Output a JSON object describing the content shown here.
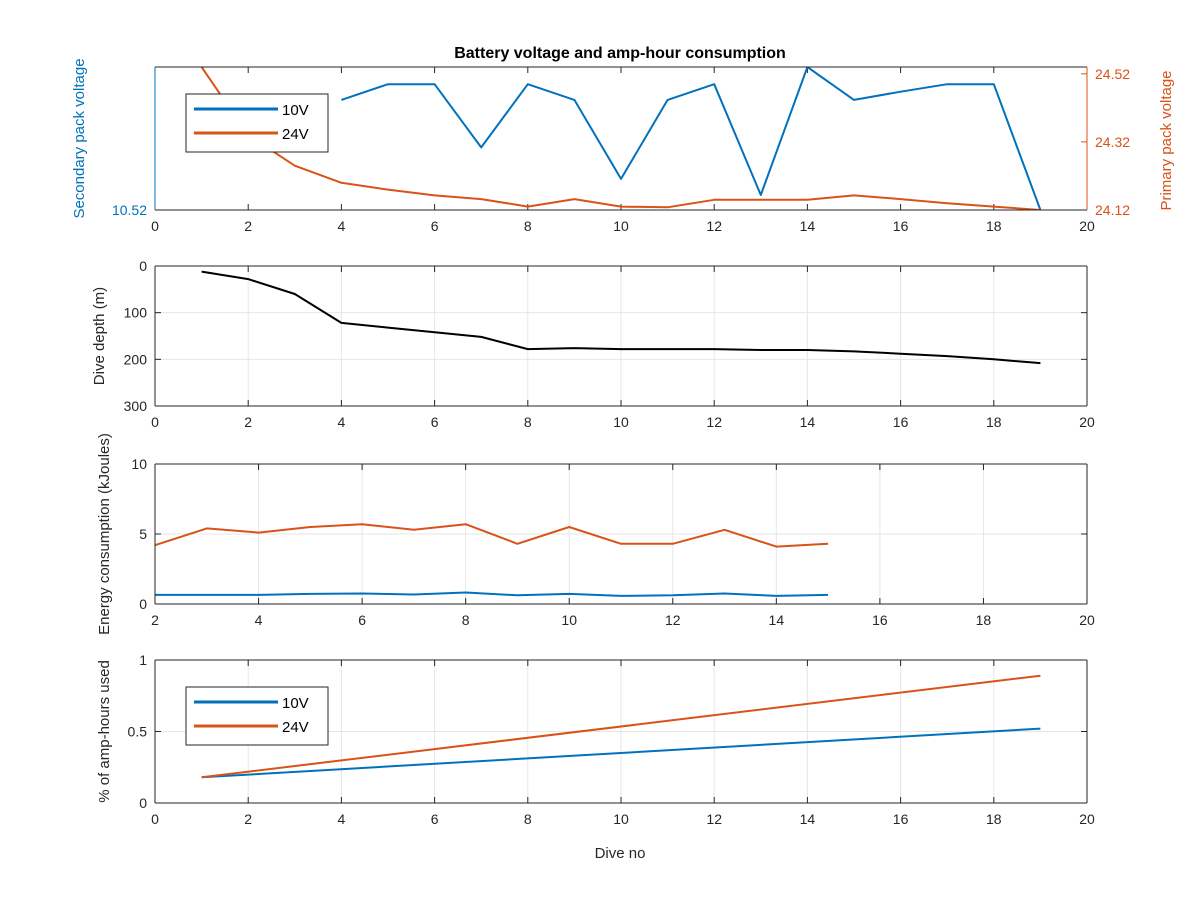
{
  "figure": {
    "title": "Battery voltage and amp-hour consumption",
    "xlabel": "Dive no"
  },
  "colors": {
    "blue": "#0072BD",
    "orange": "#D95319",
    "black": "#000000",
    "grid": "#e6e6e6",
    "axis": "#262626"
  },
  "chart_data": [
    {
      "type": "line",
      "title": "Battery voltage and amp-hour consumption",
      "ylabel": "Secondary pack voltage",
      "ylabel_right": "Primary pack voltage",
      "xlim": [
        0,
        20
      ],
      "xticks": [
        0,
        2,
        4,
        6,
        8,
        10,
        12,
        14,
        16,
        18,
        20
      ],
      "ylim": [
        10.52,
        10.56
      ],
      "yticks": [
        10.52
      ],
      "ytick_labels": [
        "10.52"
      ],
      "ylim_right": [
        24.12,
        24.54
      ],
      "yticks_right": [
        24.12,
        24.32,
        24.52
      ],
      "ytick_labels_right": [
        "24.12",
        "24.32",
        "24.52"
      ],
      "grid": false,
      "legend": {
        "location": "top-left",
        "entries": [
          "10V",
          "24V"
        ]
      },
      "series": [
        {
          "name": "10V",
          "axis": "left",
          "color": "#0072BD",
          "x": [
            4,
            5,
            6,
            7,
            8,
            9,
            10,
            11,
            12,
            13,
            14,
            15,
            16,
            17,
            18,
            19
          ],
          "y": [
            10.5508,
            10.5552,
            10.5552,
            10.5375,
            10.5552,
            10.5508,
            10.5287,
            10.5508,
            10.5552,
            10.5242,
            10.56,
            10.5508,
            10.5531,
            10.5552,
            10.5552,
            10.52
          ]
        },
        {
          "name": "24V",
          "axis": "right",
          "color": "#D95319",
          "x": [
            1,
            2,
            3,
            4,
            5,
            6,
            7,
            8,
            9,
            10,
            11,
            12,
            13,
            14,
            15,
            16,
            17,
            18,
            19
          ],
          "y": [
            24.54,
            24.34,
            24.25,
            24.2,
            24.18,
            24.163,
            24.152,
            24.13,
            24.152,
            24.13,
            24.128,
            24.15,
            24.15,
            24.15,
            24.163,
            24.152,
            24.14,
            24.13,
            24.12
          ]
        }
      ]
    },
    {
      "type": "line",
      "ylabel": "Dive depth (m)",
      "xlim": [
        0,
        20
      ],
      "xticks": [
        0,
        2,
        4,
        6,
        8,
        10,
        12,
        14,
        16,
        18,
        20
      ],
      "ylim": [
        300,
        0
      ],
      "y_reversed": true,
      "yticks": [
        0,
        100,
        200,
        300
      ],
      "ytick_labels": [
        "0",
        "100",
        "200",
        "300"
      ],
      "grid": true,
      "series": [
        {
          "color": "#000000",
          "x": [
            1,
            2,
            3,
            4,
            5,
            6,
            7,
            8,
            9,
            10,
            11,
            12,
            13,
            14,
            15,
            16,
            17,
            18,
            19
          ],
          "y": [
            12,
            28,
            60,
            122,
            132,
            142,
            152,
            178,
            176,
            178,
            178,
            178,
            180,
            180,
            183,
            188,
            193,
            200,
            208
          ]
        }
      ]
    },
    {
      "type": "line",
      "ylabel": "Energy consumption (kJoules)",
      "xlim": [
        2,
        20
      ],
      "xticks": [
        2,
        4,
        6,
        8,
        10,
        12,
        14,
        16,
        18,
        20
      ],
      "ylim": [
        0,
        10
      ],
      "yticks": [
        0,
        5,
        10
      ],
      "ytick_labels": [
        "0",
        "5",
        "10"
      ],
      "grid": true,
      "series": [
        {
          "color": "#D95319",
          "x": [
            2,
            3,
            4,
            5,
            6,
            7,
            8,
            9,
            10,
            11,
            12,
            13,
            14,
            15
          ],
          "y": [
            4.2,
            5.4,
            5.1,
            5.5,
            5.7,
            5.3,
            5.7,
            4.3,
            5.5,
            4.3,
            4.3,
            5.3,
            4.1,
            4.3
          ]
        },
        {
          "color": "#0072BD",
          "x": [
            2,
            3,
            4,
            5,
            6,
            7,
            8,
            9,
            10,
            11,
            12,
            13,
            14,
            15
          ],
          "y": [
            0.65,
            0.65,
            0.65,
            0.72,
            0.75,
            0.68,
            0.82,
            0.62,
            0.72,
            0.58,
            0.62,
            0.75,
            0.58,
            0.65
          ]
        }
      ]
    },
    {
      "type": "line",
      "ylabel": "% of amp-hours used",
      "xlabel": "Dive no",
      "xlim": [
        0,
        20
      ],
      "xticks": [
        0,
        2,
        4,
        6,
        8,
        10,
        12,
        14,
        16,
        18,
        20
      ],
      "ylim": [
        0,
        1
      ],
      "yticks": [
        0,
        0.5,
        1
      ],
      "ytick_labels": [
        "0",
        "0.5",
        "1"
      ],
      "grid": true,
      "legend": {
        "location": "bottom-left",
        "entries": [
          "10V",
          "24V"
        ]
      },
      "series": [
        {
          "name": "10V",
          "color": "#0072BD",
          "x": [
            1,
            19
          ],
          "y": [
            0.18,
            0.52
          ]
        },
        {
          "name": "24V",
          "color": "#D95319",
          "x": [
            1,
            19
          ],
          "y": [
            0.18,
            0.89
          ]
        }
      ]
    }
  ]
}
